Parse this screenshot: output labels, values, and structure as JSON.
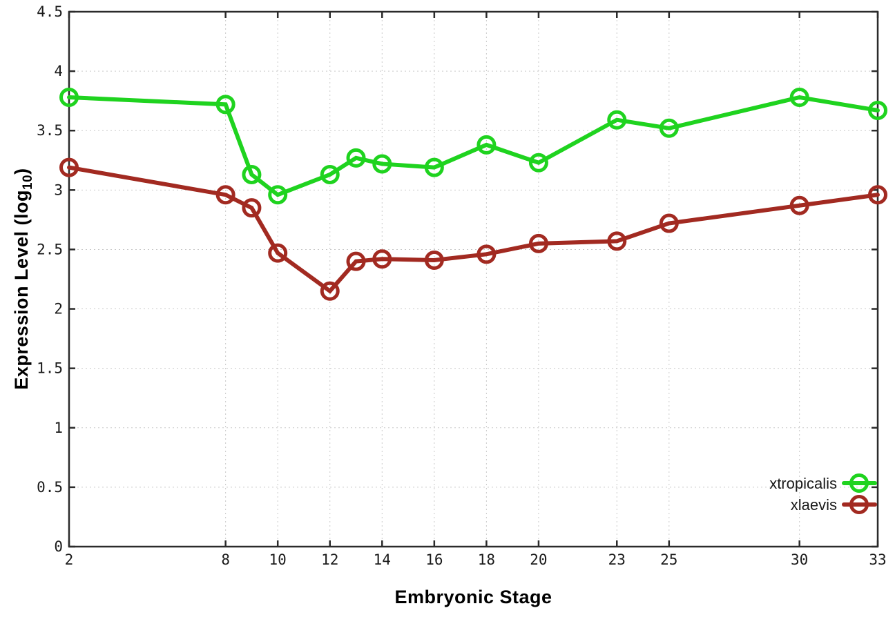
{
  "figure": {
    "xlabel": "Embryonic Stage",
    "ylabel_main": "Expression Level (log",
    "ylabel_sub": "10",
    "ylabel_end": ")"
  },
  "chart_data": {
    "type": "line",
    "x": [
      2,
      8,
      9,
      10,
      12,
      13,
      14,
      16,
      18,
      20,
      23,
      25,
      30,
      33
    ],
    "series": [
      {
        "name": "xtropicalis",
        "color": "#1fd31f",
        "values": [
          3.78,
          3.72,
          3.13,
          2.96,
          3.13,
          3.27,
          3.22,
          3.19,
          3.38,
          3.23,
          3.59,
          3.52,
          3.78,
          3.67
        ]
      },
      {
        "name": "xlaevis",
        "color": "#a22a21",
        "values": [
          3.19,
          2.96,
          2.85,
          2.47,
          2.15,
          2.4,
          2.42,
          2.41,
          2.46,
          2.55,
          2.57,
          2.72,
          2.87,
          2.96
        ]
      }
    ],
    "title": "",
    "xlabel": "Embryonic Stage",
    "ylabel": "Expression Level (log10)",
    "xlim": [
      2,
      33
    ],
    "ylim": [
      0,
      4.5
    ],
    "xticks": [
      2,
      8,
      10,
      12,
      14,
      16,
      18,
      20,
      23,
      25,
      30,
      33
    ],
    "yticks": [
      0,
      0.5,
      1,
      1.5,
      2,
      2.5,
      3,
      3.5,
      4,
      4.5
    ],
    "grid": true,
    "legend_position": "bottom-right",
    "marker": "open-circle"
  },
  "style": {
    "background": "#ffffff",
    "border_color": "#2b2b2b",
    "grid_color": "#c9c9c9",
    "tick_color": "#2b2b2b",
    "tick_label_color": "#1a1a1a",
    "axis_label_color": "#000000",
    "legend_text_color": "#1a1a1a"
  }
}
